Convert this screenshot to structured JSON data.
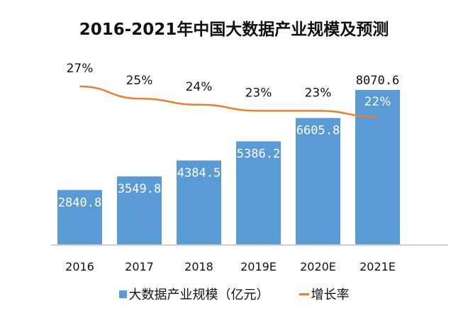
{
  "chart_data": {
    "type": "bar",
    "title": "2016-2021年中国大数据产业规模及预测",
    "categories": [
      "2016",
      "2017",
      "2018",
      "2019E",
      "2020E",
      "2021E"
    ],
    "series": [
      {
        "name": "大数据产业规模（亿元）",
        "type": "bar",
        "color": "#5b9bd5",
        "values": [
          2840.8,
          3549.8,
          4384.5,
          5386.2,
          6605.8,
          8070.6
        ],
        "labels": [
          "2840.8",
          "3549.8",
          "4384.5",
          "5386.2",
          "6605.8",
          "8070.6"
        ]
      },
      {
        "name": "增长率",
        "type": "line",
        "color": "#ed7d31",
        "values": [
          27,
          25,
          24,
          23,
          23,
          22
        ],
        "labels": [
          "27%",
          "25%",
          "24%",
          "23%",
          "23%",
          "22%"
        ]
      }
    ],
    "legend_position": "bottom",
    "grid": false
  }
}
